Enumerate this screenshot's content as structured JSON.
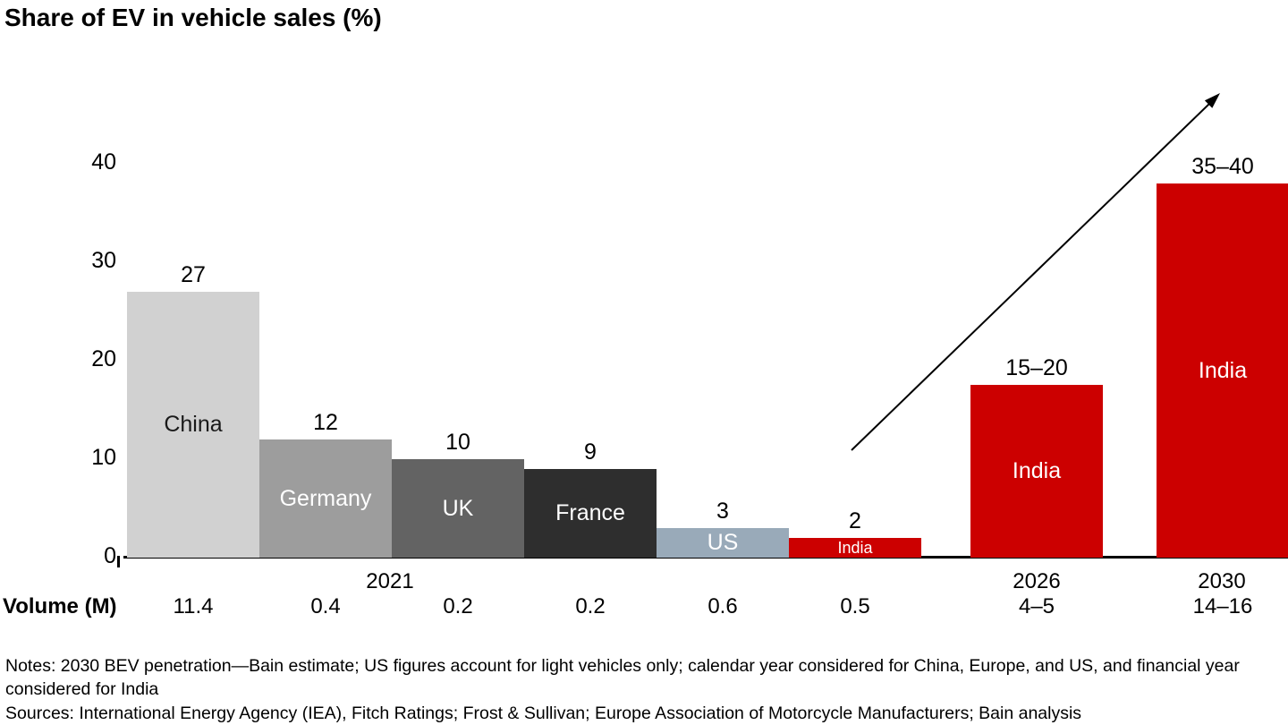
{
  "title": "Share of EV in vehicle sales (%)",
  "chart_data": {
    "type": "bar",
    "title": "Share of EV in vehicle sales (%)",
    "ylim": [
      0,
      44
    ],
    "y_ticks": [
      0,
      10,
      20,
      30,
      40
    ],
    "grid": false,
    "legend": "none",
    "arrow_color": "#000000",
    "volume_row_label": "Volume (M)",
    "x_groups": [
      {
        "label": "2021"
      },
      {
        "label": "2026"
      },
      {
        "label": "2030"
      }
    ],
    "bars": [
      {
        "id": "china",
        "label": "China",
        "value": 27,
        "value_label": "27",
        "volume": "11.4",
        "color": "#d1d1d1",
        "text_color": "#1a1a1a"
      },
      {
        "id": "germany",
        "label": "Germany",
        "value": 12,
        "value_label": "12",
        "volume": "0.4",
        "color": "#9d9d9d",
        "text_color": "#ffffff"
      },
      {
        "id": "uk",
        "label": "UK",
        "value": 10,
        "value_label": "10",
        "volume": "0.2",
        "color": "#636363",
        "text_color": "#ffffff"
      },
      {
        "id": "france",
        "label": "France",
        "value": 9,
        "value_label": "9",
        "volume": "0.2",
        "color": "#2e2e2e",
        "text_color": "#ffffff"
      },
      {
        "id": "us",
        "label": "US",
        "value": 3,
        "value_label": "3",
        "volume": "0.6",
        "color": "#99aab9",
        "text_color": "#ffffff"
      },
      {
        "id": "india-2021",
        "label": "India",
        "value": 2,
        "value_label": "2",
        "volume": "0.5",
        "color": "#cc0000",
        "text_color": "#ffffff",
        "small_label": true
      },
      {
        "id": "india-2026",
        "label": "India",
        "value": 17.5,
        "value_label": "15–20",
        "volume": "4–5",
        "color": "#cc0000",
        "text_color": "#ffffff",
        "gap_before": 55
      },
      {
        "id": "india-2030",
        "label": "India",
        "value": 38,
        "value_label": "35–40",
        "volume": "14–16",
        "color": "#cc0000",
        "text_color": "#ffffff",
        "gap_before": 60
      }
    ]
  },
  "notes_text": "Notes: 2030 BEV penetration—Bain estimate; US figures account for light vehicles only; calendar year considered for China, Europe, and US, and financial year considered for India",
  "sources_text": "Sources: International Energy Agency (IEA), Fitch Ratings; Frost & Sullivan; Europe Association of Motorcycle Manufacturers; Bain analysis"
}
